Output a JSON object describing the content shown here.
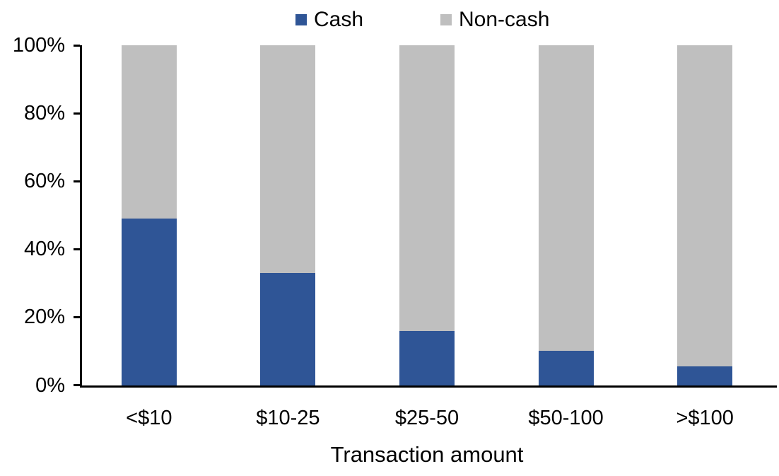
{
  "legend": {
    "items": [
      {
        "label": "Cash"
      },
      {
        "label": "Non-cash"
      }
    ]
  },
  "chart_data": {
    "type": "bar",
    "stacked": true,
    "stack_unit": "percent",
    "title": "",
    "xlabel": "Transaction amount",
    "ylabel": "",
    "categories": [
      "<$10",
      "$10-25",
      "$25-50",
      "$50-100",
      ">$100"
    ],
    "series": [
      {
        "name": "Cash",
        "color": "#2F5596",
        "values": [
          49,
          33,
          16,
          10,
          5.5
        ]
      },
      {
        "name": "Non-cash",
        "color": "#BFBFBF",
        "values": [
          51,
          67,
          84,
          90,
          94.5
        ]
      }
    ],
    "ylim": [
      0,
      100
    ],
    "y_tick_labels_top_to_bottom": [
      "100%",
      "80%",
      "60%",
      "40%",
      "20%",
      "0%"
    ],
    "grid": false,
    "legend_position": "top",
    "axis_color": "#000000",
    "background_color": "#FFFFFF"
  }
}
